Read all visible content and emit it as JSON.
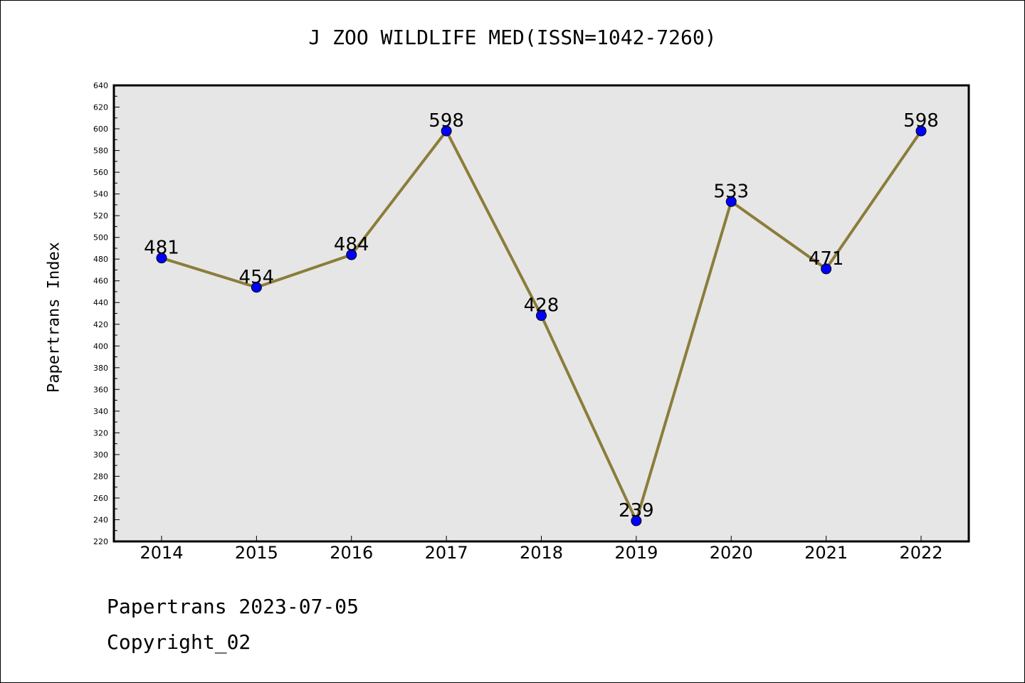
{
  "chart_data": {
    "type": "line",
    "title": "J ZOO WILDLIFE MED(ISSN=1042-7260)",
    "ylabel": "Papertrans Index",
    "xlabel": "",
    "categories": [
      "2014",
      "2015",
      "2016",
      "2017",
      "2018",
      "2019",
      "2020",
      "2021",
      "2022"
    ],
    "series": [
      {
        "values": [
          481,
          454,
          484,
          598,
          428,
          239,
          533,
          471,
          598
        ]
      }
    ],
    "data_labels": [
      "481",
      "454",
      "484",
      "598",
      "428",
      "239",
      "533",
      "471",
      "598"
    ],
    "ylim": [
      220,
      640
    ],
    "yticks": [
      220,
      240,
      260,
      280,
      300,
      320,
      340,
      360,
      380,
      400,
      420,
      440,
      460,
      480,
      500,
      520,
      540,
      560,
      580,
      600,
      620,
      640
    ],
    "grid": false,
    "colors": {
      "plot_bg": "#e6e6e6",
      "line": "#8b7d3a",
      "marker": "#0000ff"
    }
  },
  "footer": {
    "line1": "Papertrans 2023-07-05",
    "line2": "Copyright_02"
  }
}
